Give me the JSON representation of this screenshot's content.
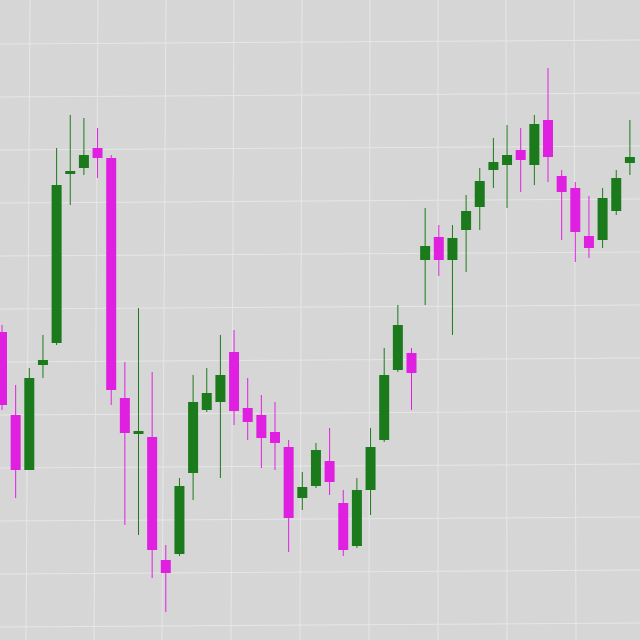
{
  "chart_data": {
    "type": "candlestick",
    "categories": [
      null,
      null,
      null,
      null,
      null,
      null,
      null,
      null,
      null,
      null,
      null,
      null,
      null,
      null,
      null,
      null,
      null,
      null,
      null,
      null,
      null,
      null,
      null,
      null,
      null,
      null,
      null,
      null,
      null,
      null,
      null,
      null,
      null,
      null,
      null,
      null,
      null,
      null,
      null,
      null,
      null,
      null,
      null,
      null,
      null,
      null,
      null
    ],
    "open": [
      308,
      225,
      170,
      275,
      297,
      467,
      472,
      492,
      482,
      242,
      207,
      203,
      80,
      86,
      167,
      230,
      238,
      288,
      232,
      225,
      208,
      193,
      142,
      154,
      179,
      137,
      94,
      150,
      200,
      270,
      287,
      380,
      403,
      380,
      410,
      433,
      470,
      475,
      490,
      475,
      520,
      464,
      452,
      404,
      400,
      429,
      477
    ],
    "high": [
      315,
      255,
      272,
      305,
      492,
      525,
      522,
      512,
      485,
      278,
      332,
      268,
      95,
      162,
      265,
      272,
      305,
      310,
      262,
      245,
      238,
      200,
      168,
      197,
      212,
      150,
      162,
      212,
      292,
      335,
      292,
      432,
      415,
      415,
      445,
      472,
      502,
      515,
      512,
      525,
      572,
      470,
      458,
      444,
      452,
      470,
      520
    ],
    "low": [
      230,
      142,
      170,
      262,
      295,
      435,
      465,
      462,
      235,
      115,
      105,
      62,
      28,
      84,
      140,
      228,
      162,
      215,
      200,
      172,
      170,
      88,
      130,
      152,
      145,
      84,
      92,
      125,
      198,
      268,
      230,
      335,
      364,
      305,
      368,
      410,
      452,
      432,
      448,
      455,
      458,
      400,
      378,
      382,
      392,
      425,
      465
    ],
    "close": [
      235,
      170,
      262,
      280,
      455,
      469,
      485,
      482,
      250,
      207,
      209,
      90,
      67,
      154,
      238,
      247,
      265,
      229,
      218,
      202,
      197,
      122,
      153,
      190,
      158,
      90,
      150,
      193,
      265,
      315,
      267,
      394,
      380,
      402,
      429,
      459,
      478,
      485,
      480,
      516,
      483,
      448,
      408,
      392,
      442,
      462,
      483
    ],
    "up_color": "#1b7a1b",
    "down_color": "#e020e0",
    "ylim": [
      0,
      640
    ]
  }
}
